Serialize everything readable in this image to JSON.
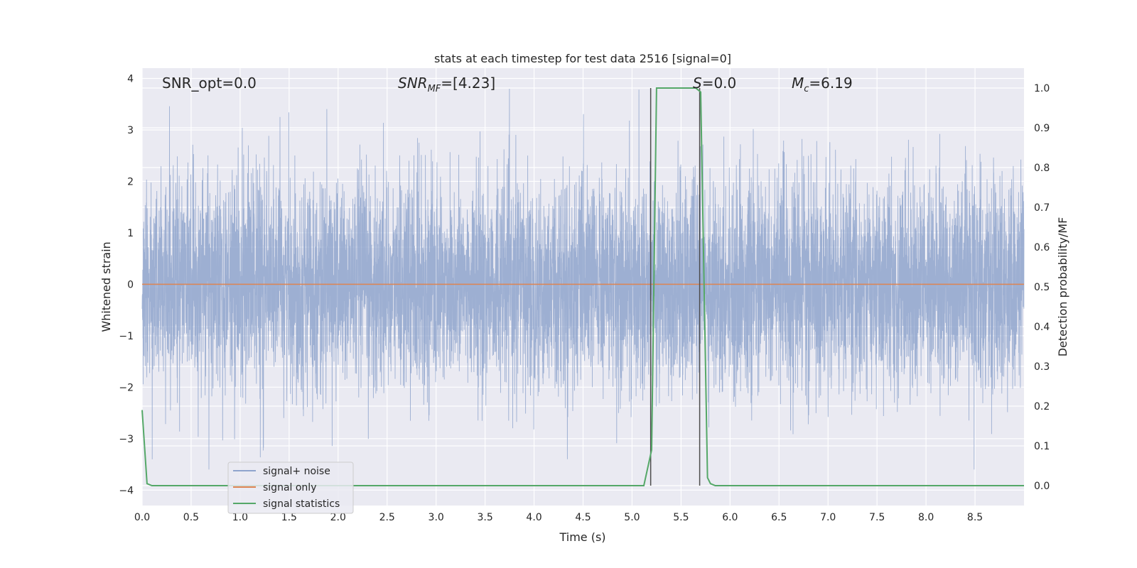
{
  "chart_data": {
    "type": "line",
    "title": "stats at each timestep for test data 2516 [signal=0]",
    "xlabel": "Time (s)",
    "ylabel": "Whitened strain",
    "y2label": "Detection probability/MF",
    "xlim": [
      0,
      9
    ],
    "ylim": [
      -4.3,
      4.2
    ],
    "y2lim": [
      -0.05,
      1.05
    ],
    "x_ticks": [
      "0.0",
      "0.5",
      "1.0",
      "1.5",
      "2.0",
      "2.5",
      "3.0",
      "3.5",
      "4.0",
      "4.5",
      "5.0",
      "5.5",
      "6.0",
      "6.5",
      "7.0",
      "7.5",
      "8.0",
      "8.5"
    ],
    "y_ticks": [
      "4",
      "3",
      "2",
      "1",
      "0",
      "−1",
      "−2",
      "−3",
      "−4"
    ],
    "y2_ticks": [
      "1.0",
      "0.9",
      "0.8",
      "0.7",
      "0.6",
      "0.5",
      "0.4",
      "0.3",
      "0.2",
      "0.1",
      "0.0"
    ],
    "grid": true,
    "legend_placement": "lower-left",
    "annotations": {
      "snr_opt": "SNR_opt=0.0",
      "snr_mf_sym": "SNR",
      "snr_mf_sub": "MF",
      "snr_mf_rest": "=[4.23]",
      "s_sym": "S",
      "s_rest": "=0.0",
      "mc_sym": "M",
      "mc_sub": "c",
      "mc_rest": "=6.19"
    },
    "series": [
      {
        "name": "signal+ noise",
        "axis": "left",
        "color": "#8fa4cd",
        "description_values": {
          "mean": 0,
          "std": 1.0,
          "min": -3.6,
          "max": 3.8
        }
      },
      {
        "name": "signal only",
        "axis": "left",
        "color": "#dd8452",
        "x": [
          0,
          9
        ],
        "y": [
          0,
          0
        ]
      },
      {
        "name": "signal statistics",
        "axis": "right",
        "color": "#55a868",
        "x": [
          0,
          0.05,
          0.1,
          0.15,
          5.12,
          5.2,
          5.25,
          5.5,
          5.65,
          5.7,
          5.77,
          5.8,
          5.85,
          9.0
        ],
        "y": [
          0.19,
          0.005,
          0.0,
          0.0,
          0.0,
          0.09,
          1.0,
          1.0,
          1.0,
          0.99,
          0.02,
          0.005,
          0.0,
          0.0
        ]
      }
    ],
    "vertical_markers": {
      "color": "#4c4c4c",
      "x": [
        5.19,
        5.69
      ],
      "y2_range": [
        0.0,
        1.0
      ]
    }
  }
}
